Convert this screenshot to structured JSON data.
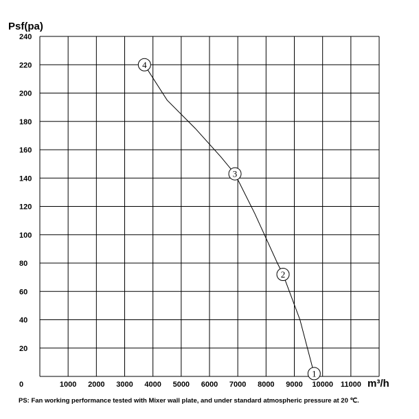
{
  "chart_data": {
    "type": "line",
    "ylabel": "Psf(pa)",
    "xlabel": "m³/h",
    "xlim": [
      0,
      12000
    ],
    "ylim": [
      0,
      240
    ],
    "x_ticks": [
      0,
      1000,
      2000,
      3000,
      4000,
      5000,
      6000,
      7000,
      8000,
      9000,
      10000,
      11000
    ],
    "y_ticks": [
      20,
      40,
      60,
      80,
      100,
      120,
      140,
      160,
      180,
      200,
      220,
      240
    ],
    "grid": true,
    "series": [
      {
        "points": [
          {
            "x": 3700,
            "y": 220
          },
          {
            "x": 4500,
            "y": 195
          },
          {
            "x": 5500,
            "y": 175
          },
          {
            "x": 6400,
            "y": 155
          },
          {
            "x": 6900,
            "y": 143
          },
          {
            "x": 7600,
            "y": 115
          },
          {
            "x": 8400,
            "y": 80
          },
          {
            "x": 8600,
            "y": 72
          },
          {
            "x": 9200,
            "y": 40
          },
          {
            "x": 9700,
            "y": 2
          }
        ]
      }
    ],
    "markers": [
      {
        "label": "1",
        "x": 9700,
        "y": 2
      },
      {
        "label": "2",
        "x": 8600,
        "y": 72
      },
      {
        "label": "3",
        "x": 6900,
        "y": 143
      },
      {
        "label": "4",
        "x": 3700,
        "y": 220
      }
    ],
    "note": "PS: Fan working performance tested with Mixer wall plate, and under standard atmospheric pressure at 20 ℃."
  }
}
